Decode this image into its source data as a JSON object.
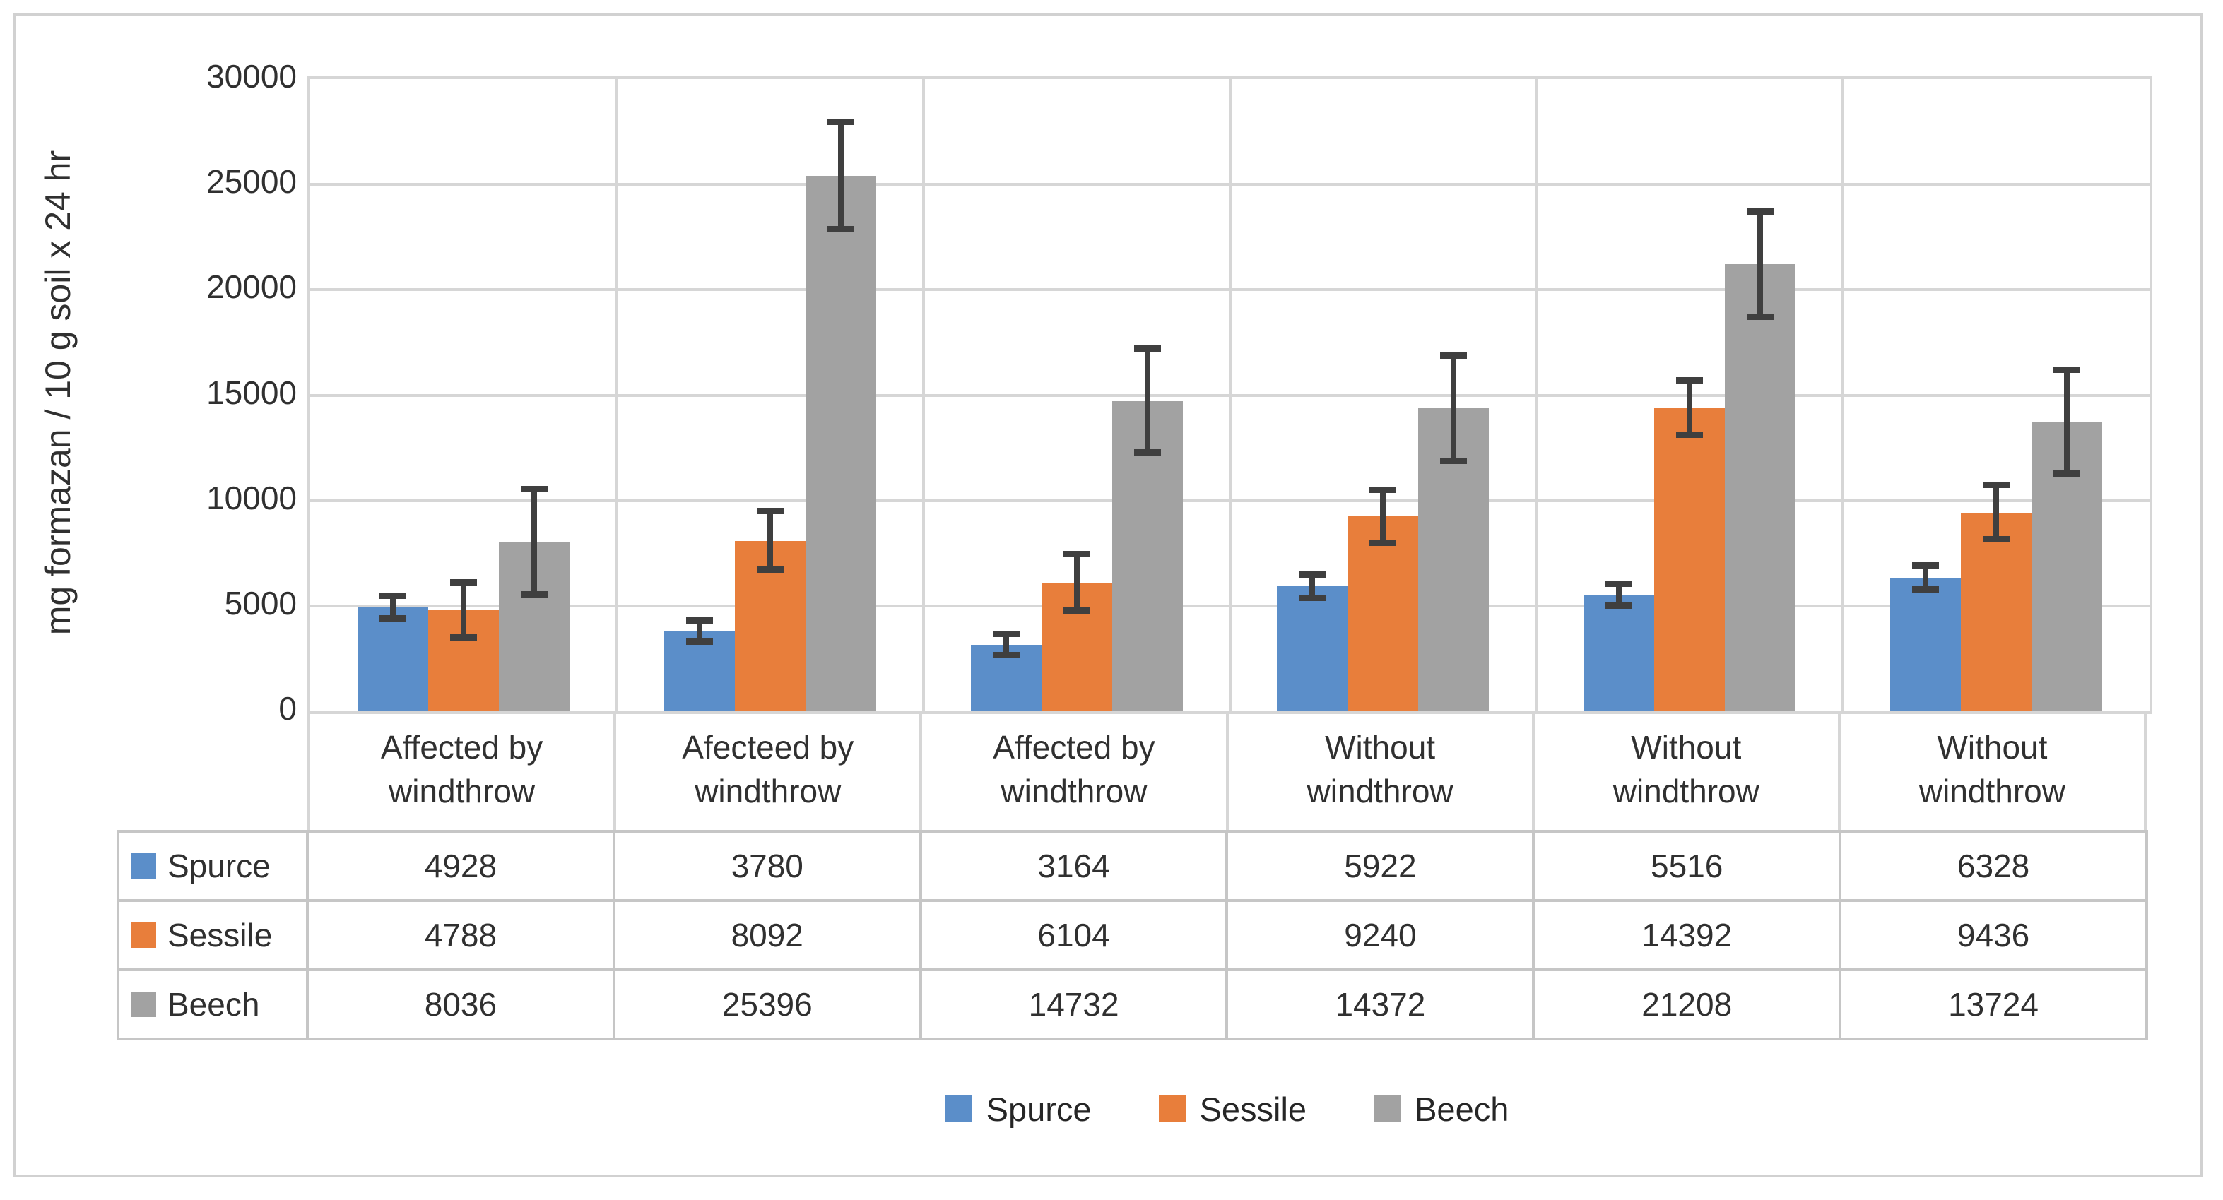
{
  "chart_data": {
    "type": "bar",
    "title": "",
    "xlabel": "",
    "ylabel": "mg formazan / 10 g soil x 24 hr",
    "ylim": [
      0,
      30000
    ],
    "ytick_step": 5000,
    "yticks": [
      0,
      5000,
      10000,
      15000,
      20000,
      25000,
      30000
    ],
    "grid": true,
    "legend_position": "bottom",
    "has_data_table": true,
    "has_error_bars": true,
    "categories": [
      "Affected by\nwindthrow",
      "Afecteed by\nwindthrow",
      "Affected by\nwindthrow",
      "Without\nwindthrow",
      "Without\nwindthrow",
      "Without\nwindthrow"
    ],
    "series": [
      {
        "name": "Spurce",
        "color": "#5b8ec9",
        "values": [
          4928,
          3780,
          3164,
          5922,
          5516,
          6328
        ],
        "errors": [
          550,
          500,
          500,
          550,
          520,
          575
        ]
      },
      {
        "name": "Sessile",
        "color": "#e87e3b",
        "values": [
          4788,
          8092,
          6104,
          9240,
          14392,
          9436
        ],
        "errors": [
          1300,
          1400,
          1350,
          1250,
          1300,
          1300
        ]
      },
      {
        "name": "Beech",
        "color": "#a2a2a2",
        "values": [
          8036,
          25396,
          14732,
          14372,
          21208,
          13724
        ],
        "errors": [
          2500,
          2550,
          2450,
          2500,
          2500,
          2450
        ]
      }
    ],
    "error_bar_color": "#3f3f3f"
  },
  "style": {
    "gridline_color": "#d6d6d6",
    "table_border_color": "#c6c6c6",
    "outer_border_color": "#d1d1d1",
    "text_color": "#303030",
    "background": "#ffffff"
  }
}
